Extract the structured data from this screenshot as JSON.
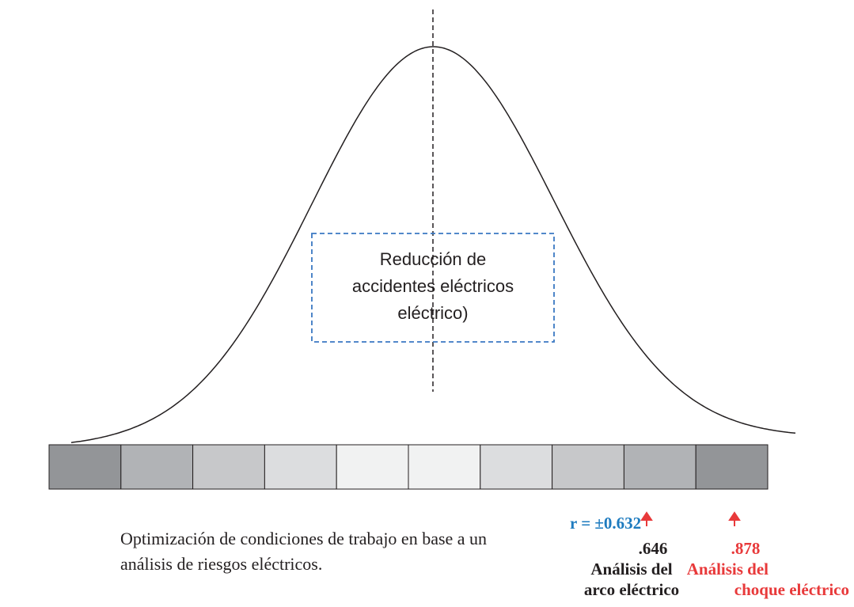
{
  "box": {
    "lines": [
      "Reducción de",
      "accidentes eléctricos",
      "eléctrico)"
    ]
  },
  "caption": {
    "lines": [
      "Optimización de condiciones de trabajo en base a un",
      "análisis de riesgos eléctricos."
    ]
  },
  "correlation": "r = ±0.632",
  "factors": [
    {
      "value": ".646",
      "lines": [
        "Análisis del",
        "arco eléctrico"
      ]
    },
    {
      "value": ".878",
      "lines": [
        "Análisis del",
        "choque eléctrico"
      ]
    }
  ]
}
